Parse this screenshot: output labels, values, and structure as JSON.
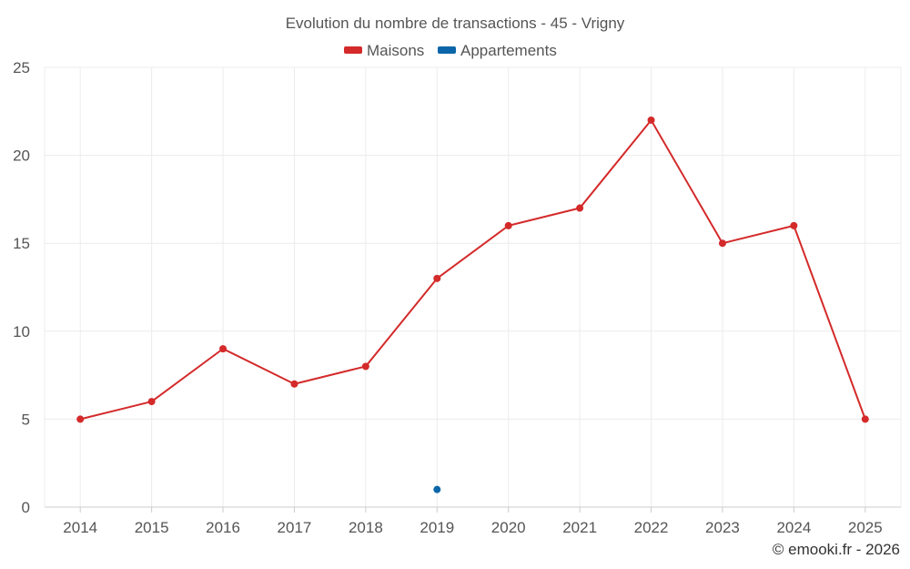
{
  "chart_data": {
    "type": "line",
    "title": "Evolution du nombre de transactions - 45 - Vrigny",
    "categories": [
      "2014",
      "2015",
      "2016",
      "2017",
      "2018",
      "2019",
      "2020",
      "2021",
      "2022",
      "2023",
      "2024",
      "2025"
    ],
    "series": [
      {
        "name": "Maisons",
        "color": "#d42a2a",
        "values": [
          5,
          6,
          9,
          7,
          8,
          13,
          16,
          17,
          22,
          15,
          16,
          5
        ]
      },
      {
        "name": "Appartements",
        "color": "#0a66a8",
        "values": [
          null,
          null,
          null,
          null,
          null,
          1,
          null,
          null,
          null,
          null,
          null,
          null
        ]
      }
    ],
    "ylim": [
      0,
      25
    ],
    "yticks": [
      "0",
      "5",
      "10",
      "15",
      "20",
      "25"
    ],
    "grid": true,
    "legend": "top-center",
    "xlabel": "",
    "ylabel": ""
  },
  "credit": "© emooki.fr - 2026"
}
